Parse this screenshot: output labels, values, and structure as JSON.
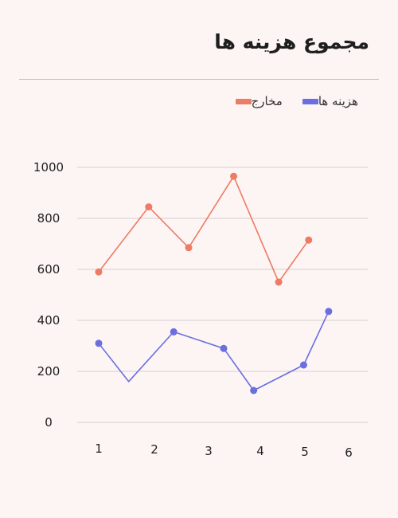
{
  "chart_data": {
    "type": "line",
    "title": "مجموع هزینه ها",
    "xlabel": "",
    "ylabel": "",
    "ylim": [
      0,
      1000
    ],
    "yticks": [
      0,
      200,
      400,
      600,
      800,
      1000
    ],
    "xticks": [
      "1",
      "2",
      "3",
      "4",
      "5",
      "6"
    ],
    "grid": true,
    "legend_position": "top-right",
    "series": [
      {
        "name": "مخارج",
        "color": "#ee7b63",
        "x": [
          1,
          2,
          2.8,
          3.7,
          4.6,
          5.2
        ],
        "y": [
          590,
          845,
          685,
          965,
          550,
          715
        ],
        "markers": [
          true,
          true,
          true,
          true,
          true,
          true
        ]
      },
      {
        "name": "هزینه ها",
        "color": "#6b6ee0",
        "x": [
          1,
          1.6,
          2.5,
          3.5,
          4.1,
          5.1,
          5.6
        ],
        "y": [
          310,
          160,
          355,
          290,
          125,
          225,
          435
        ],
        "markers": [
          true,
          false,
          true,
          true,
          true,
          true,
          true
        ]
      }
    ]
  }
}
